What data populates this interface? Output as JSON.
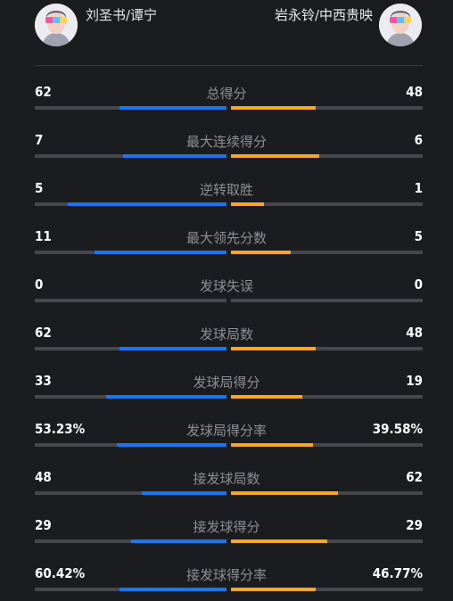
{
  "players": {
    "left": {
      "name": "刘圣书/谭宁"
    },
    "right": {
      "name": "岩永铃/中西贵映"
    }
  },
  "stats": [
    {
      "label": "总得分",
      "left": "62",
      "right": "48",
      "left_fill": 0.56,
      "right_fill": 0.44
    },
    {
      "label": "最大连续得分",
      "left": "7",
      "right": "6",
      "left_fill": 0.54,
      "right_fill": 0.46
    },
    {
      "label": "逆转取胜",
      "left": "5",
      "right": "1",
      "left_fill": 0.83,
      "right_fill": 0.17
    },
    {
      "label": "最大领先分数",
      "left": "11",
      "right": "5",
      "left_fill": 0.69,
      "right_fill": 0.31
    },
    {
      "label": "发球失误",
      "left": "0",
      "right": "0",
      "left_fill": 0,
      "right_fill": 0
    },
    {
      "label": "发球局数",
      "left": "62",
      "right": "48",
      "left_fill": 0.56,
      "right_fill": 0.44
    },
    {
      "label": "发球局得分",
      "left": "33",
      "right": "19",
      "left_fill": 0.63,
      "right_fill": 0.37
    },
    {
      "label": "发球局得分率",
      "left": "53.23%",
      "right": "39.58%",
      "left_fill": 0.57,
      "right_fill": 0.43
    },
    {
      "label": "接发球局数",
      "left": "48",
      "right": "62",
      "left_fill": 0.44,
      "right_fill": 0.56
    },
    {
      "label": "接发球得分",
      "left": "29",
      "right": "29",
      "left_fill": 0.5,
      "right_fill": 0.5
    },
    {
      "label": "接发球得分率",
      "left": "60.42%",
      "right": "46.77%",
      "left_fill": 0.56,
      "right_fill": 0.44
    }
  ],
  "colors": {
    "left_bar": "#1678f0",
    "right_bar": "#f7a81b",
    "track": "#46474d",
    "background": "#1b1c20"
  }
}
